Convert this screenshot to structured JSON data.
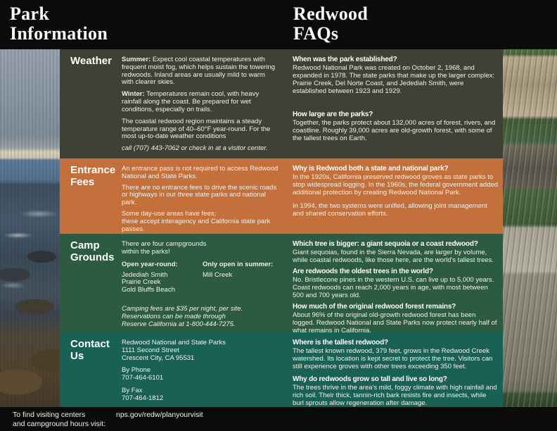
{
  "header": {
    "left_title": "Park\nInformation",
    "right_title": "Redwood\nFAQs"
  },
  "colors": {
    "weather_bg": "#3e4134",
    "fees_bg": "#c3703c",
    "camp_bg": "#2c5b41",
    "contact_bg": "#1a6155",
    "bars_bg": "#0b0b0b",
    "text": "#f3f1ea"
  },
  "photos": {
    "left": "coastline-with-rocky-shore-photo",
    "right": "redwood-logs-and-foliage-photo"
  },
  "sections": {
    "weather": {
      "title": "Weather",
      "paragraphs": [
        {
          "lead": "Summer:",
          "text": "Expect cool coastal temperatures with frequent moist fog, which helps sustain the towering redwoods. Inland areas are usually mild to warm with clearer skies."
        },
        {
          "lead": "Winter:",
          "text": "Temperatures remain cool, with heavy rainfall along the coast. Be prepared for wet conditions, especially on trails."
        },
        {
          "lead": "",
          "text": "The coastal redwood region maintains a steady temperature range of 40–60°F year-round. For the most up-to-date weather conditions"
        },
        {
          "lead": "",
          "text": "call (707) 443-7062 or check in at a visitor center."
        }
      ],
      "faqs": [
        {
          "q": "When was the park established?",
          "a": "Redwood National Park was created on October 2, 1968, and expanded in 1978. The state parks that make up the larger complex: Prairie Creek, Del Norte Coast, and Jedediah Smith, were established between 1923 and 1929."
        },
        {
          "q": "How large are the parks?",
          "a": "Together, the parks protect about 132,000 acres of forest, rivers, and coastline. Roughly 39,000 acres are old-growth forest, with some of the tallest trees on Earth."
        }
      ]
    },
    "fees": {
      "title": "Entrance\nFees",
      "paragraphs": [
        {
          "text": "An entrance pass is not required to access Redwood National and State Parks."
        },
        {
          "text": "There are no entrance fees to drive the scenic roads or highways in our three state parks and national park."
        },
        {
          "text": "Some day-use areas have fees;\nthese accept interagency and California state park passes."
        }
      ],
      "faqs": [
        {
          "q": "Why is Redwood both a state and national park?",
          "a": "In the 1920s, California preserved redwood groves as state parks to stop widespread logging. In the 1960s, the federal government added additional protection by creating Redwood National Park.",
          "a2": "In 1994, the two systems were unified, allowing joint management and shared conservation efforts."
        }
      ]
    },
    "camp": {
      "title": "Camp\nGrounds",
      "intro": "There are four campgrounds\nwithin the parks!",
      "year_round_label": "Open year-round:",
      "year_round_items": "Jedediah Smith\nPrairie Creek\nGold Bluffs Beach",
      "summer_label": "Only open in summer:",
      "summer_items": "Mill Creek",
      "note": "Camping fees are $35 per night, per site.\nReservations can be made through\nReserve California at 1-800-444-7275.",
      "faqs": [
        {
          "q": "Which tree is bigger: a giant sequoia or a coast redwood?",
          "a": "Giant sequoias, found in the Sierra Nevada, are larger by volume, while coastal redwoods, like those here, are the world's tallest trees."
        },
        {
          "q": "Are redwoods the oldest trees in the world?",
          "a": "No. Bristlecone pines in the western U.S. can live up to 5,000 years. Coast redwoods can reach 2,000 years in age, with most between 500 and 700 years old."
        },
        {
          "q": "How much of the original redwood forest remains?",
          "a": "About 96% of the original old-growth redwood forest has been logged. Redwood National and State Parks now protect nearly half of what remains in California."
        }
      ]
    },
    "contact": {
      "title": "Contact\nUs",
      "address": "Redwood National and State Parks\n1111 Second Street\nCrescent City, CA 95531",
      "phone": "By Phone\n707-464-6101",
      "fax": "By Fax\n707-464-1812",
      "faqs": [
        {
          "q": "Where is the tallest redwood?",
          "a": "The tallest known redwood, 379 feet, grows in the Redwood Creek watershed. Its location is kept secret to protect the tree. Visitors can still experience groves with other trees exceeding 350 feet."
        },
        {
          "q": "Why do redwoods grow so tall and live so long?",
          "a": "The trees thrive in the area's mild, foggy climate with high rainfall and rich soil. Their thick, tannin-rich bark resists fire and insects, while burl sprouts allow regeneration after damage."
        }
      ]
    }
  },
  "footer": {
    "label": "To find visiting centers\nand campground hours visit:",
    "url": "nps.gov/redw/planyourvisit"
  }
}
